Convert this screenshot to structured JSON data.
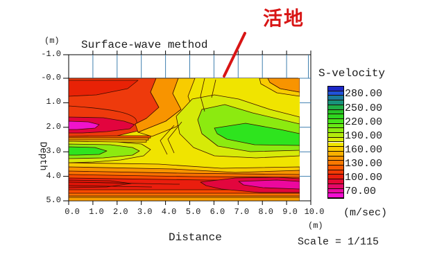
{
  "plot": {
    "title": "Surface-wave method",
    "y_unit": "(m)",
    "x_unit": "(m)",
    "ylabel": "Depth",
    "xlabel": "Distance",
    "y_ticks": [
      "-1.0",
      "-0.0",
      "1.0",
      "2.0",
      "3.0",
      "4.0",
      "5.0"
    ],
    "x_ticks": [
      "0.0",
      "1.0",
      "2.0",
      "3.0",
      "4.0",
      "5.0",
      "6.0",
      "7.0",
      "8.0",
      "9.0",
      "10.0"
    ],
    "scale_note": "Scale = 1/115"
  },
  "annotation": {
    "label": "活地",
    "color": "#d81515"
  },
  "legend": {
    "title": "S-velocity",
    "unit": "(m/sec)",
    "labels": [
      "280.00",
      "250.00",
      "220.00",
      "190.00",
      "160.00",
      "130.00",
      "100.00",
      "70.00"
    ],
    "palette": [
      "#1c28c8",
      "#2052d8",
      "#1a7a9a",
      "#18927a",
      "#1fae46",
      "#26c426",
      "#2ed61f",
      "#46e41a",
      "#66ea14",
      "#8cea10",
      "#b2ea0c",
      "#d6ea08",
      "#f0e400",
      "#f8cc00",
      "#f8b000",
      "#f89400",
      "#f87800",
      "#f85a00",
      "#f23a04",
      "#ea1e0e",
      "#e40836",
      "#e40868",
      "#ea08a2",
      "#f20ed2"
    ]
  },
  "chart_data": {
    "type": "heatmap",
    "title": "Surface-wave method",
    "xlabel": "Distance (m)",
    "ylabel": "Depth (m)",
    "x_range": [
      0,
      10
    ],
    "depth_range": [
      -1.0,
      5.0
    ],
    "section_extent_m": [
      0,
      9.5
    ],
    "colorbar": {
      "title": "S-velocity",
      "unit": "m/sec",
      "tick_values": [
        280,
        250,
        220,
        190,
        160,
        130,
        100,
        70
      ],
      "value_range": [
        60,
        300
      ],
      "step": 10
    },
    "x": [
      0.5,
      1.5,
      2.5,
      3.5,
      4.5,
      5.5,
      6.5,
      7.5,
      8.5,
      9.5
    ],
    "depths": [
      0.25,
      0.75,
      1.25,
      1.75,
      2.25,
      2.75,
      3.25,
      3.75,
      4.25,
      4.75
    ],
    "values_mps": [
      [
        92,
        90,
        95,
        105,
        125,
        150,
        160,
        162,
        155,
        138
      ],
      [
        96,
        96,
        100,
        112,
        135,
        158,
        168,
        172,
        168,
        158
      ],
      [
        95,
        98,
        102,
        115,
        142,
        165,
        180,
        188,
        182,
        168
      ],
      [
        85,
        90,
        98,
        112,
        148,
        170,
        190,
        198,
        192,
        178
      ],
      [
        70,
        78,
        95,
        125,
        155,
        172,
        195,
        210,
        215,
        205
      ],
      [
        215,
        208,
        198,
        178,
        165,
        175,
        200,
        218,
        222,
        208
      ],
      [
        172,
        168,
        162,
        158,
        152,
        150,
        158,
        168,
        172,
        165
      ],
      [
        138,
        135,
        132,
        128,
        124,
        120,
        118,
        115,
        114,
        115
      ],
      [
        102,
        102,
        100,
        98,
        95,
        90,
        84,
        80,
        78,
        80
      ],
      [
        128,
        127,
        125,
        123,
        120,
        118,
        115,
        113,
        112,
        112
      ]
    ],
    "features": [
      "low-velocity magenta lens (~70 m/s) at x 0-1.5 m, depth ~2 m",
      "high-velocity green zone (~200-220 m/s) at depth 2.5-3.2 m on the left side",
      "high-velocity green zone (~200-220 m/s) at x 6-9.5 m, depth 1.5-3 m",
      "low-velocity red/pink band (~80-100 m/s) at depth 4-4.6 m, strongest at x 6-9.5 m",
      "blue survey-point marks every 1 m above the ground surface (-1.0 to 0.0 m band)"
    ],
    "legend_position": "right",
    "grid": false,
    "scale": "1/115",
    "annotation": "活地 (red label with arrow pointing at ground surface near x = 6.5 m)"
  }
}
